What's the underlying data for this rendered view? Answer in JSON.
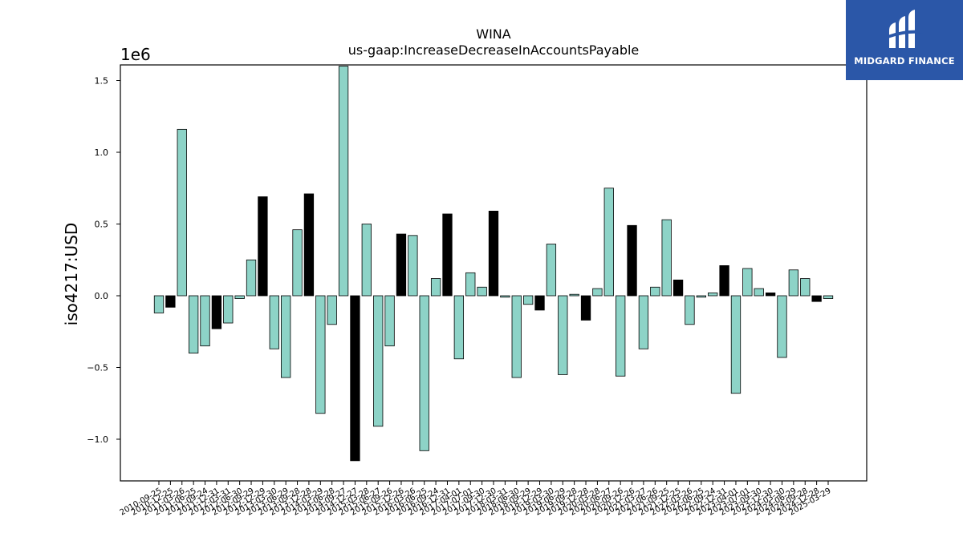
{
  "logo": {
    "text": "MIDGARD FINANCE",
    "icon": "midgard-m-icon",
    "background": "#2b57a8"
  },
  "chart_data": {
    "type": "bar",
    "title": "WINA",
    "subtitle": "us-gaap:IncreaseDecreaseInAccountsPayable",
    "ylabel": "iso4217:USD",
    "y_multiplier_label": "1e6",
    "ylim": [
      -1.3,
      1.6
    ],
    "yticks": [
      -1.0,
      -0.5,
      0.0,
      0.5,
      1.0,
      1.5
    ],
    "ytick_labels": [
      "−1.0",
      "−0.5",
      "0.0",
      "0.5",
      "1.0",
      "1.5"
    ],
    "colors": {
      "primary": "#8dd3c7",
      "highlight": "#000000"
    },
    "grid": false,
    "categories": [
      "2010-09-25",
      "2010-12-25",
      "2011-03-26",
      "2011-06-25",
      "2011-09-24",
      "2011-12-31",
      "2012-03-31",
      "2012-06-30",
      "2012-09-29",
      "2012-12-29",
      "2013-03-30",
      "2013-06-29",
      "2013-09-28",
      "2013-12-28",
      "2014-03-29",
      "2014-06-28",
      "2014-09-27",
      "2014-12-27",
      "2015-03-28",
      "2015-06-27",
      "2015-09-26",
      "2015-12-26",
      "2016-03-26",
      "2016-06-25",
      "2016-09-24",
      "2016-12-31",
      "2017-04-01",
      "2017-07-01",
      "2017-09-30",
      "2017-12-30",
      "2018-03-31",
      "2018-06-30",
      "2018-09-29",
      "2018-12-29",
      "2019-03-30",
      "2019-06-29",
      "2019-09-28",
      "2019-12-28",
      "2020-03-28",
      "2020-06-27",
      "2020-09-26",
      "2020-12-26",
      "2021-03-27",
      "2021-06-26",
      "2021-09-25",
      "2021-12-25",
      "2022-03-26",
      "2022-06-25",
      "2022-09-24",
      "2022-12-31",
      "2023-04-01",
      "2023-07-01",
      "2023-09-30",
      "2023-12-30",
      "2024-03-30",
      "2024-06-29",
      "2024-09-28",
      "2024-12-28",
      "2025-03-29"
    ],
    "values": [
      -0.12,
      -0.08,
      1.16,
      -0.4,
      -0.35,
      -0.23,
      -0.19,
      -0.02,
      0.25,
      0.69,
      -0.37,
      -0.57,
      0.46,
      0.71,
      -0.82,
      -0.2,
      1.62,
      -1.15,
      0.5,
      -0.91,
      -0.35,
      0.43,
      0.42,
      -1.08,
      0.12,
      0.57,
      -0.44,
      0.16,
      0.06,
      0.59,
      -0.01,
      -0.57,
      -0.06,
      -0.1,
      0.36,
      -0.55,
      0.01,
      -0.17,
      0.05,
      0.75,
      -0.56,
      0.49,
      -0.37,
      0.06,
      0.53,
      0.11,
      -0.2,
      -0.01,
      0.02,
      0.21,
      -0.68,
      0.19,
      0.05,
      0.02,
      -0.43,
      0.18,
      0.12,
      -0.04,
      -0.02
    ],
    "highlight": [
      false,
      true,
      false,
      false,
      false,
      true,
      false,
      false,
      false,
      true,
      false,
      false,
      false,
      true,
      false,
      false,
      false,
      true,
      false,
      false,
      false,
      true,
      false,
      false,
      false,
      true,
      false,
      false,
      false,
      true,
      false,
      false,
      false,
      true,
      false,
      false,
      false,
      true,
      false,
      false,
      false,
      true,
      false,
      false,
      false,
      true,
      false,
      false,
      false,
      true,
      false,
      false,
      false,
      true,
      false,
      false,
      false,
      true,
      false
    ]
  }
}
